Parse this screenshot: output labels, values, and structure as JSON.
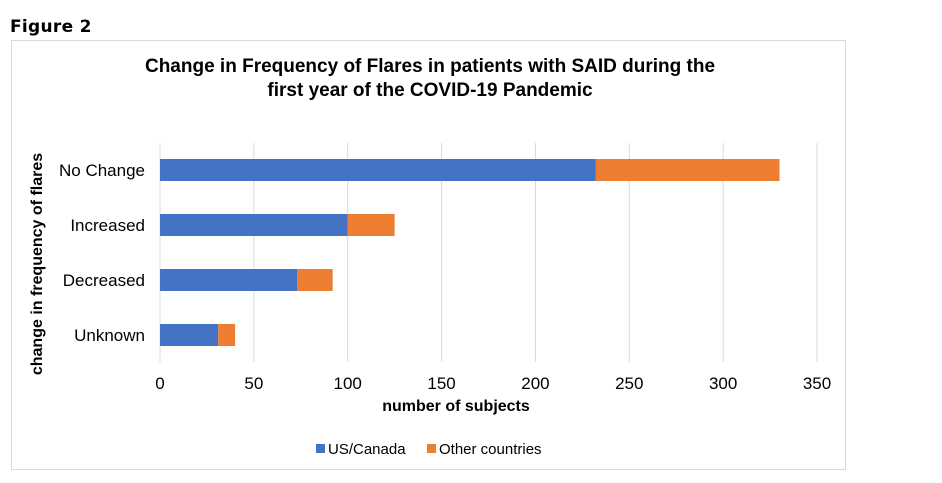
{
  "figure_label": "Figure 2",
  "chart_data": {
    "type": "bar",
    "orientation": "horizontal",
    "stacked": true,
    "title_lines": [
      "Change in Frequency of Flares in patients with SAID during the",
      "first year of the COVID-19 Pandemic"
    ],
    "xlabel": "number of subjects",
    "ylabel": "change in frequency of flares",
    "categories": [
      "No Change",
      "Increased",
      "Decreased",
      "Unknown"
    ],
    "series": [
      {
        "name": "US/Canada",
        "color": "#4472C4",
        "values": [
          232,
          100,
          73,
          31
        ]
      },
      {
        "name": "Other countries",
        "color": "#ED7D31",
        "values": [
          98,
          25,
          19,
          9
        ]
      }
    ],
    "xlim": [
      0,
      350
    ],
    "xticks": [
      "0",
      "50",
      "100",
      "150",
      "200",
      "250",
      "300",
      "350"
    ],
    "grid": true,
    "legend_position": "bottom"
  }
}
